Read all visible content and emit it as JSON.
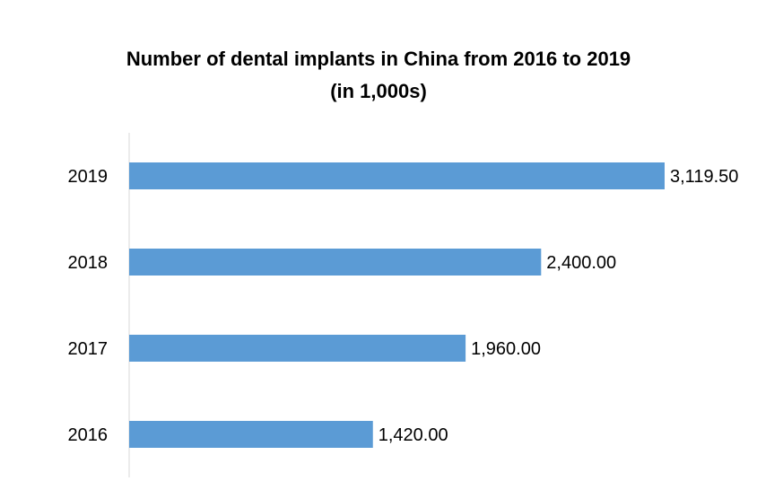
{
  "chart_data": {
    "type": "bar",
    "orientation": "horizontal",
    "title": "Number of dental implants in China from 2016 to 2019",
    "subtitle": "(in 1,000s)",
    "categories": [
      "2019",
      "2018",
      "2017",
      "2016"
    ],
    "values": [
      3119.5,
      2400.0,
      1960.0,
      1420.0
    ],
    "data_labels": [
      "3,119.50",
      "2,400.00",
      "1,960.00",
      "1,420.00"
    ],
    "xlim": [
      0,
      3119.5
    ],
    "grid": false,
    "legend": "none",
    "bar_color": "#5b9bd5",
    "axis_color": "#d9d9d9"
  }
}
